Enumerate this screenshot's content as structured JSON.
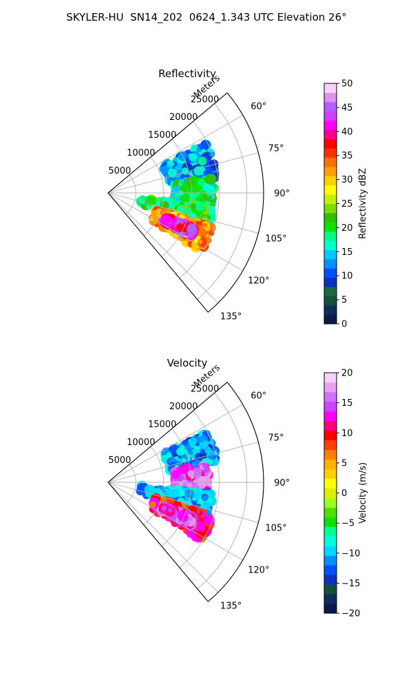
{
  "figure_title": "SKYLER-HU  SN14_202  0624_1.343 UTC Elevation 26°",
  "colors": {
    "grid": "#b0b0b0",
    "frame": "#000000",
    "reflectivity_colormap": [
      "#0b1a4d",
      "#0f2d5a",
      "#15503a",
      "#1a6a3d",
      "#1030c0",
      "#0050ff",
      "#0090ff",
      "#00c8ff",
      "#00ffd0",
      "#00ff80",
      "#10e000",
      "#30c000",
      "#7fdc00",
      "#c8f000",
      "#ffff00",
      "#ffd000",
      "#ffa000",
      "#ff7000",
      "#ff3000",
      "#ff0000",
      "#ff0090",
      "#ff00ff",
      "#d040ff",
      "#b060ff",
      "#e090f0",
      "#f6d0f6"
    ],
    "velocity_colormap": [
      "#0b1a4d",
      "#0f2d5a",
      "#15503a",
      "#1030c0",
      "#0050ff",
      "#0090ff",
      "#00d8ff",
      "#00ffe0",
      "#00ff90",
      "#10e000",
      "#50e000",
      "#9bff20",
      "#dcf000",
      "#ffff00",
      "#ffd000",
      "#ffb000",
      "#ff8000",
      "#ff4000",
      "#ff0000",
      "#ff0080",
      "#ff00ff",
      "#cc44ff",
      "#d070ff",
      "#e8a0f0",
      "#f6d0f6"
    ]
  },
  "chart_data": [
    {
      "type": "polar_radar_ppi",
      "title": "Reflectivity",
      "radial_unit_label": "Meters",
      "radial_ticks": [
        5000,
        10000,
        15000,
        20000,
        25000
      ],
      "radial_tick_labels": [
        "5000",
        "10000",
        "15000",
        "20000",
        "25000"
      ],
      "rmax": 28000,
      "azimuth_range_deg": [
        50,
        140
      ],
      "azimuth_ticks": [
        60,
        75,
        90,
        105,
        120,
        135
      ],
      "azimuth_tick_labels": [
        "60°",
        "75°",
        "90°",
        "105°",
        "120°",
        "135°"
      ],
      "colorbar": {
        "label": "Reflectivity dBZ",
        "min": 0,
        "max": 50,
        "ticks": [
          0,
          5,
          10,
          15,
          20,
          25,
          30,
          35,
          40,
          45,
          50
        ],
        "tick_labels": [
          "0",
          "5",
          "10",
          "15",
          "20",
          "25",
          "30",
          "35",
          "40",
          "45",
          "50"
        ]
      },
      "echo_regions": [
        {
          "az_deg": [
            63,
            82
          ],
          "range_m": [
            11000,
            20000
          ],
          "value": 13,
          "unit": "dBZ"
        },
        {
          "az_deg": [
            82,
            98
          ],
          "range_m": [
            12000,
            19000
          ],
          "value": 18,
          "unit": "dBZ"
        },
        {
          "az_deg": [
            98,
            108
          ],
          "range_m": [
            6000,
            19000
          ],
          "value": 20,
          "unit": "dBZ"
        },
        {
          "az_deg": [
            108,
            122
          ],
          "range_m": [
            9000,
            20000
          ],
          "value": 32,
          "unit": "dBZ"
        },
        {
          "az_deg": [
            112,
            118
          ],
          "range_m": [
            11000,
            17000
          ],
          "value": 42,
          "unit": "dBZ"
        }
      ]
    },
    {
      "type": "polar_radar_ppi",
      "title": "Velocity",
      "radial_unit_label": "Meters",
      "radial_ticks": [
        5000,
        10000,
        15000,
        20000,
        25000
      ],
      "radial_tick_labels": [
        "5000",
        "10000",
        "15000",
        "20000",
        "25000"
      ],
      "rmax": 28000,
      "azimuth_range_deg": [
        50,
        140
      ],
      "azimuth_ticks": [
        60,
        75,
        90,
        105,
        120,
        135
      ],
      "azimuth_tick_labels": [
        "60°",
        "75°",
        "90°",
        "105°",
        "120°",
        "135°"
      ],
      "colorbar": {
        "label": "Velocity (m/s)",
        "min": -20,
        "max": 20,
        "ticks": [
          -20,
          -15,
          -10,
          -5,
          0,
          5,
          10,
          15,
          20
        ],
        "tick_labels": [
          "−20",
          "−15",
          "−10",
          "−5",
          "0",
          "5",
          "10",
          "15",
          "20"
        ]
      },
      "echo_regions": [
        {
          "az_deg": [
            63,
            80
          ],
          "range_m": [
            11000,
            20000
          ],
          "value": -11,
          "unit": "m/s"
        },
        {
          "az_deg": [
            80,
            96
          ],
          "range_m": [
            12000,
            18000
          ],
          "value": 15,
          "unit": "m/s"
        },
        {
          "az_deg": [
            96,
            108
          ],
          "range_m": [
            6000,
            19000
          ],
          "value": -10,
          "unit": "m/s"
        },
        {
          "az_deg": [
            108,
            122
          ],
          "range_m": [
            9000,
            20000
          ],
          "value": 10,
          "unit": "m/s"
        },
        {
          "az_deg": [
            112,
            118
          ],
          "range_m": [
            11000,
            17000
          ],
          "value": 14,
          "unit": "m/s"
        }
      ]
    }
  ]
}
